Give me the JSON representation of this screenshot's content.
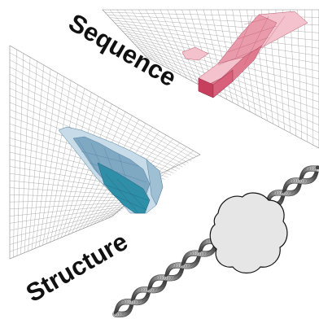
{
  "labels": {
    "sequence": "Sequence",
    "structure": "Structure"
  },
  "colors": {
    "background": "#ffffff",
    "grid_line": "#8a8a8a",
    "sequence_landscape": "#e07a8f",
    "sequence_landscape_light": "#f3c2cc",
    "sequence_landscape_dark": "#c6405e",
    "structure_landscape": "#7fa8c3",
    "structure_landscape_light": "#c7dbe8",
    "structure_landscape_dark": "#2e8fa8",
    "protein_blob": "#e6e6e6",
    "dna_helix": "#5a5a5a"
  },
  "icons": {
    "protein": "protein-globule-icon",
    "dna": "dna-double-helix-icon"
  }
}
